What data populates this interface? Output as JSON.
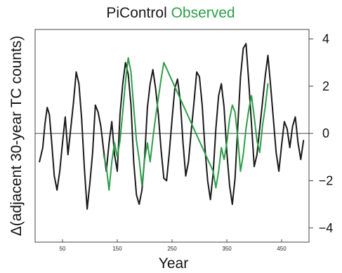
{
  "chart_data": {
    "type": "line",
    "title_parts": [
      {
        "text": "PiControl",
        "color": "#1a1a1a"
      },
      {
        "text": "Observed",
        "color": "#2e9e4a"
      }
    ],
    "xlabel": "Year",
    "ylabel": "Δ(adjacent 30-year TC counts)",
    "xlim": [
      0,
      500
    ],
    "ylim": [
      -4.6,
      4.4
    ],
    "xticks": [
      50,
      150,
      250,
      350,
      450
    ],
    "yticks": [
      -4,
      -2,
      0,
      2,
      4
    ],
    "y_axis_side": "right",
    "zero_line": true,
    "grid": false,
    "series": [
      {
        "name": "PiControl",
        "color": "#1a1a1a",
        "x": [
          8,
          14,
          18,
          22,
          26,
          30,
          35,
          40,
          45,
          50,
          55,
          60,
          65,
          70,
          75,
          80,
          85,
          90,
          95,
          100,
          105,
          110,
          115,
          120,
          125,
          130,
          135,
          140,
          145,
          150,
          155,
          160,
          165,
          170,
          175,
          180,
          185,
          190,
          195,
          200,
          205,
          210,
          215,
          220,
          225,
          230,
          235,
          240,
          245,
          250,
          255,
          260,
          265,
          270,
          275,
          280,
          285,
          290,
          295,
          300,
          305,
          310,
          315,
          320,
          325,
          330,
          335,
          340,
          345,
          350,
          355,
          360,
          365,
          370,
          375,
          380,
          385,
          390,
          395,
          400,
          405,
          410,
          415,
          420,
          425,
          430,
          435,
          440,
          445,
          450,
          455,
          460,
          465,
          470,
          475,
          480,
          485,
          490
        ],
        "values": [
          -1.2,
          -0.6,
          0.4,
          1.1,
          0.8,
          -0.3,
          -1.8,
          -2.4,
          -1.6,
          -0.4,
          0.7,
          -0.9,
          0.2,
          1.3,
          2.6,
          2.1,
          0.6,
          -1.5,
          -3.2,
          -2.1,
          -0.8,
          1.2,
          0.9,
          0.3,
          -0.7,
          -1.6,
          -0.4,
          0.5,
          -0.9,
          -1.6,
          0.8,
          2.1,
          3.0,
          2.5,
          1.2,
          -1.2,
          -2.6,
          -3.0,
          -2.4,
          -1.0,
          1.1,
          2.1,
          2.7,
          1.9,
          0.8,
          -0.7,
          -1.9,
          -2.0,
          -0.8,
          0.6,
          1.9,
          2.3,
          1.4,
          -0.4,
          -1.8,
          -1.2,
          0.1,
          1.3,
          2.6,
          2.4,
          1.2,
          -0.6,
          -2.0,
          -2.8,
          -1.7,
          0.2,
          1.6,
          2.1,
          1.1,
          -0.8,
          -2.2,
          -3.0,
          -1.9,
          0.3,
          2.4,
          3.6,
          3.8,
          2.2,
          0.4,
          -1.4,
          -0.9,
          0.2,
          1.3,
          2.4,
          3.3,
          2.0,
          0.6,
          -0.8,
          -1.6,
          -0.5,
          0.5,
          0.2,
          -0.6,
          0.3,
          0.7,
          -0.4,
          -1.1,
          -0.3
        ]
      },
      {
        "name": "Observed",
        "color": "#2e9e4a",
        "x": [
          125,
          130,
          135,
          140,
          145,
          150,
          155,
          160,
          165,
          170,
          175,
          180,
          185,
          190,
          195,
          200,
          205,
          210,
          215,
          220,
          225,
          230,
          235,
          325,
          330,
          335,
          340,
          345,
          350,
          355,
          360,
          365,
          370,
          375,
          380,
          385,
          390,
          395,
          400,
          405,
          410,
          415,
          420,
          425
        ],
        "values": [
          -0.9,
          -1.4,
          -2.4,
          -1.2,
          -0.4,
          -1.0,
          -0.3,
          0.9,
          2.2,
          3.2,
          2.6,
          1.1,
          -0.3,
          -1.1,
          -2.2,
          -1.1,
          -0.4,
          -1.2,
          -0.2,
          0.7,
          1.5,
          2.3,
          3.0,
          -1.6,
          -2.3,
          -1.6,
          -0.6,
          -1.1,
          -0.4,
          0.6,
          1.2,
          0.9,
          -0.2,
          -1.6,
          -0.9,
          0.2,
          1.0,
          1.6,
          0.7,
          -0.3,
          -0.8,
          0.3,
          1.1,
          2.1
        ]
      }
    ]
  }
}
